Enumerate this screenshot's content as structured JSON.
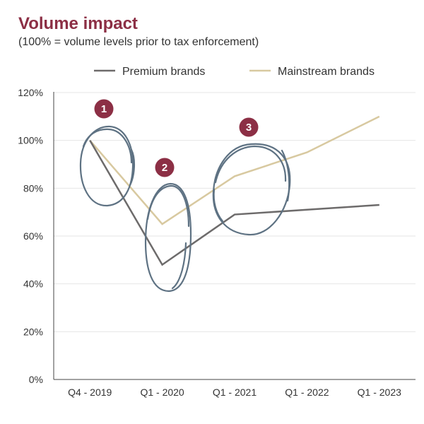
{
  "title": "Volume impact",
  "subtitle": "(100% = volume levels prior to tax enforcement)",
  "colors": {
    "title": "#8c2f45",
    "premium": "#6d6b6b",
    "mainstream": "#d8c9a0",
    "annotation": "#5e7283",
    "badge": "#8c2f45",
    "grid": "#e6e6e6",
    "axis": "#444444"
  },
  "annotations": [
    "1",
    "2",
    "3"
  ],
  "chart_data": {
    "type": "line",
    "categories": [
      "Q4 - 2019",
      "Q1 - 2020",
      "Q1 - 2021",
      "Q1 - 2022",
      "Q1 - 2023"
    ],
    "series": [
      {
        "name": "Premium brands",
        "values": [
          100,
          48,
          69,
          71,
          73
        ]
      },
      {
        "name": "Mainstream brands",
        "values": [
          100,
          65,
          85,
          95,
          110
        ]
      }
    ],
    "yticks": [
      "0%",
      "20%",
      "40%",
      "60%",
      "80%",
      "100%",
      "120%"
    ],
    "ylim": [
      0,
      120
    ],
    "grid": true,
    "legend_position": "top"
  }
}
